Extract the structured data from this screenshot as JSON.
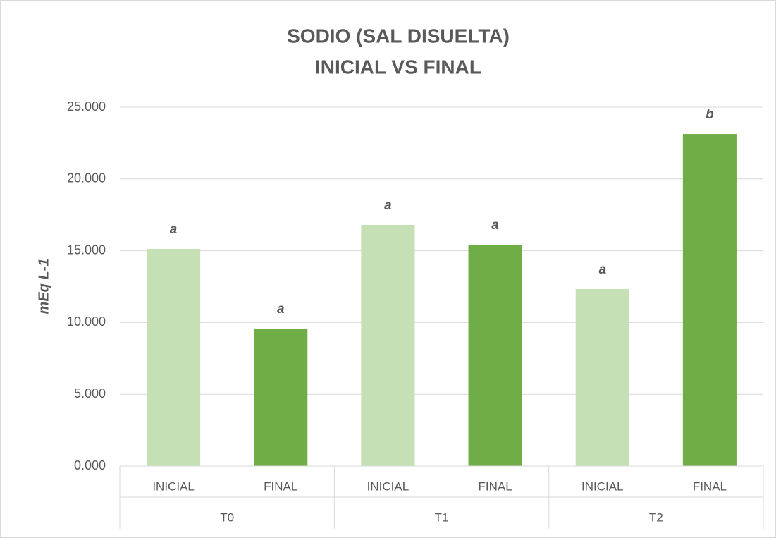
{
  "chart_data": {
    "type": "bar",
    "title": [
      "SODIO (SAL DISUELTA)",
      "INICIAL VS FINAL"
    ],
    "y_label": "mEq L-1",
    "categories": [
      "INICIAL",
      "FINAL",
      "INICIAL",
      "FINAL",
      "INICIAL",
      "FINAL"
    ],
    "groups": [
      "T0",
      "T1",
      "T2"
    ],
    "values": [
      15.13,
      9.58,
      16.8,
      15.42,
      12.33,
      23.13
    ],
    "colors": [
      "#c5e0b4",
      "#70ad47",
      "#c5e0b4",
      "#70ad47",
      "#c5e0b4",
      "#70ad47"
    ],
    "annotations": [
      "a",
      "a",
      "a",
      "a",
      "a",
      "b"
    ],
    "ylim": [
      0,
      25
    ],
    "yticks": [
      {
        "value": 0,
        "label": "0.000"
      },
      {
        "value": 5,
        "label": "5.000"
      },
      {
        "value": 10,
        "label": "10.000"
      },
      {
        "value": 15,
        "label": "15.000"
      },
      {
        "value": 20,
        "label": "20.000"
      },
      {
        "value": 25,
        "label": "25.000"
      }
    ],
    "grid": true
  }
}
